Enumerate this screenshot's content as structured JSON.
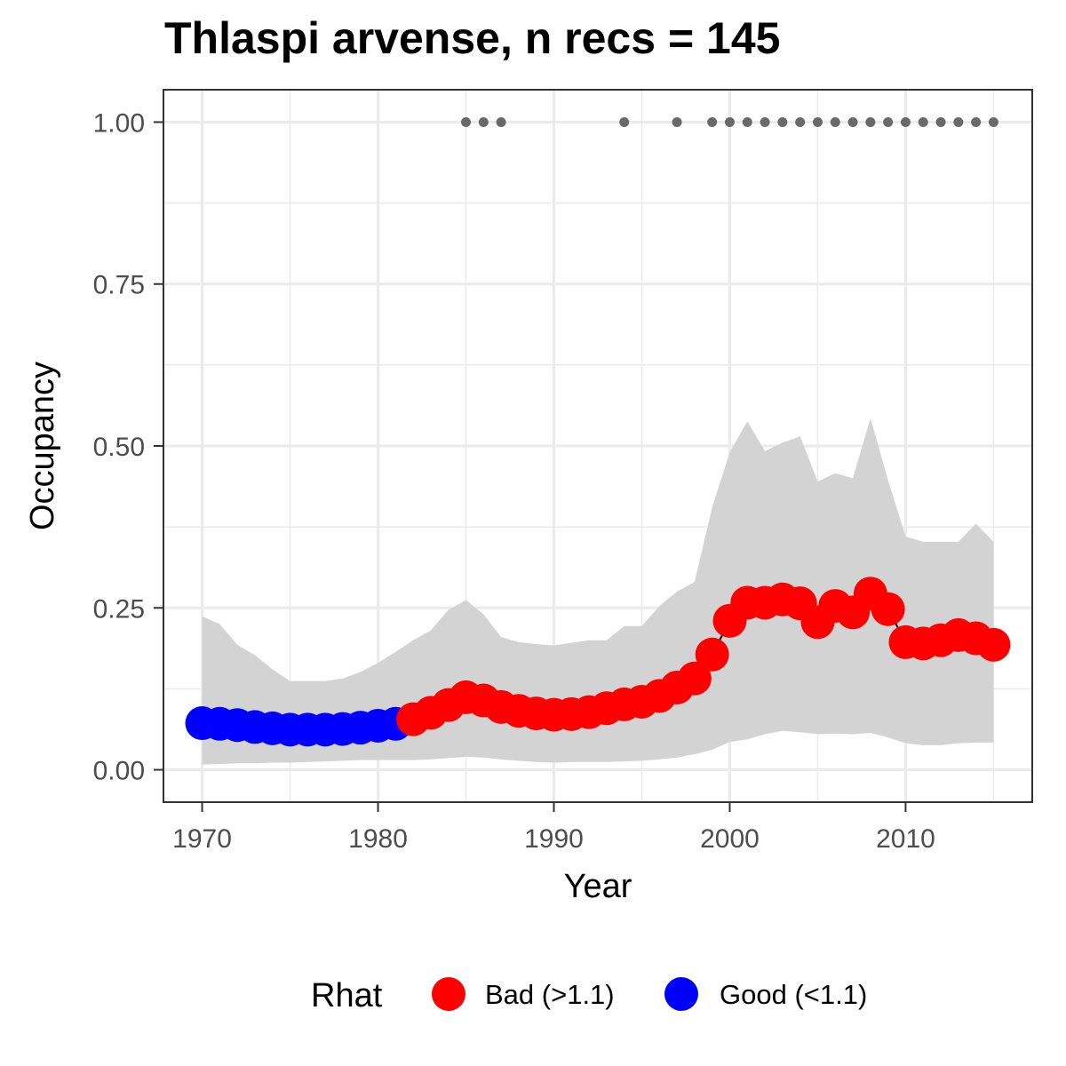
{
  "chart_data": {
    "type": "line",
    "title": "Thlaspi arvense, n recs = 145",
    "xlabel": "Year",
    "ylabel": "Occupancy",
    "xlim": [
      1967.8,
      2017.2
    ],
    "ylim": [
      -0.05,
      1.05
    ],
    "x_ticks": [
      1970,
      1980,
      1990,
      2000,
      2010
    ],
    "x_tick_labels": [
      "1970",
      "1980",
      "1990",
      "2000",
      "2010"
    ],
    "y_ticks": [
      0,
      0.25,
      0.5,
      0.75,
      1
    ],
    "y_tick_labels": [
      "0.00",
      "0.25",
      "0.50",
      "0.75",
      "1.00"
    ],
    "grid": true,
    "legend": {
      "title": "Rhat",
      "position": "bottom",
      "entries": [
        {
          "label": "Bad (>1.1)",
          "color": "#ff0000"
        },
        {
          "label": "Good (<1.1)",
          "color": "#0000ff"
        }
      ]
    },
    "series": [
      {
        "x": [
          1970,
          1971,
          1972,
          1973,
          1974,
          1975,
          1976,
          1977,
          1978,
          1979,
          1980,
          1981,
          1982,
          1983,
          1984,
          1985,
          1986,
          1987,
          1988,
          1989,
          1990,
          1991,
          1992,
          1993,
          1994,
          1995,
          1996,
          1997,
          1998,
          1999,
          2000,
          2001,
          2002,
          2003,
          2004,
          2005,
          2006,
          2007,
          2008,
          2009,
          2010,
          2011,
          2012,
          2013,
          2014,
          2015
        ],
        "mean": [
          0.072,
          0.071,
          0.069,
          0.066,
          0.064,
          0.062,
          0.062,
          0.062,
          0.063,
          0.065,
          0.068,
          0.071,
          0.078,
          0.088,
          0.1,
          0.112,
          0.107,
          0.097,
          0.091,
          0.087,
          0.085,
          0.086,
          0.089,
          0.095,
          0.101,
          0.105,
          0.114,
          0.127,
          0.141,
          0.178,
          0.23,
          0.258,
          0.258,
          0.263,
          0.257,
          0.228,
          0.253,
          0.243,
          0.272,
          0.248,
          0.197,
          0.195,
          0.2,
          0.208,
          0.203,
          0.193
        ],
        "upper": [
          0.237,
          0.225,
          0.193,
          0.177,
          0.155,
          0.137,
          0.137,
          0.137,
          0.141,
          0.151,
          0.165,
          0.182,
          0.2,
          0.215,
          0.247,
          0.262,
          0.24,
          0.205,
          0.197,
          0.194,
          0.192,
          0.196,
          0.2,
          0.2,
          0.222,
          0.222,
          0.253,
          0.275,
          0.29,
          0.405,
          0.49,
          0.538,
          0.492,
          0.505,
          0.515,
          0.445,
          0.458,
          0.45,
          0.543,
          0.447,
          0.36,
          0.352,
          0.352,
          0.352,
          0.38,
          0.352
        ],
        "lower": [
          0.008,
          0.009,
          0.01,
          0.01,
          0.011,
          0.011,
          0.012,
          0.013,
          0.014,
          0.015,
          0.015,
          0.015,
          0.015,
          0.016,
          0.018,
          0.02,
          0.019,
          0.016,
          0.014,
          0.012,
          0.011,
          0.012,
          0.012,
          0.012,
          0.013,
          0.014,
          0.016,
          0.019,
          0.024,
          0.031,
          0.043,
          0.047,
          0.055,
          0.06,
          0.058,
          0.055,
          0.056,
          0.055,
          0.057,
          0.05,
          0.041,
          0.038,
          0.038,
          0.041,
          0.042,
          0.042
        ],
        "rhat_status": [
          "Good",
          "Good",
          "Good",
          "Good",
          "Good",
          "Good",
          "Good",
          "Good",
          "Good",
          "Good",
          "Good",
          "Good",
          "Bad",
          "Bad",
          "Bad",
          "Bad",
          "Bad",
          "Bad",
          "Bad",
          "Bad",
          "Bad",
          "Bad",
          "Bad",
          "Bad",
          "Bad",
          "Bad",
          "Bad",
          "Bad",
          "Bad",
          "Bad",
          "Bad",
          "Bad",
          "Bad",
          "Bad",
          "Bad",
          "Bad",
          "Bad",
          "Bad",
          "Bad",
          "Bad",
          "Bad",
          "Bad",
          "Bad",
          "Bad",
          "Bad",
          "Bad"
        ]
      }
    ],
    "records": {
      "y": 1.0,
      "x": [
        1985,
        1986,
        1987,
        1994,
        1997,
        1999,
        2000,
        2001,
        2002,
        2003,
        2004,
        2005,
        2006,
        2007,
        2008,
        2009,
        2010,
        2011,
        2012,
        2013,
        2014,
        2015
      ]
    },
    "colors": {
      "bad": "#ff0000",
      "good": "#0000ff",
      "ribbon": "#d3d3d3",
      "records": "#696969",
      "grid": "#ebebeb",
      "panel_border": "#333333"
    }
  }
}
